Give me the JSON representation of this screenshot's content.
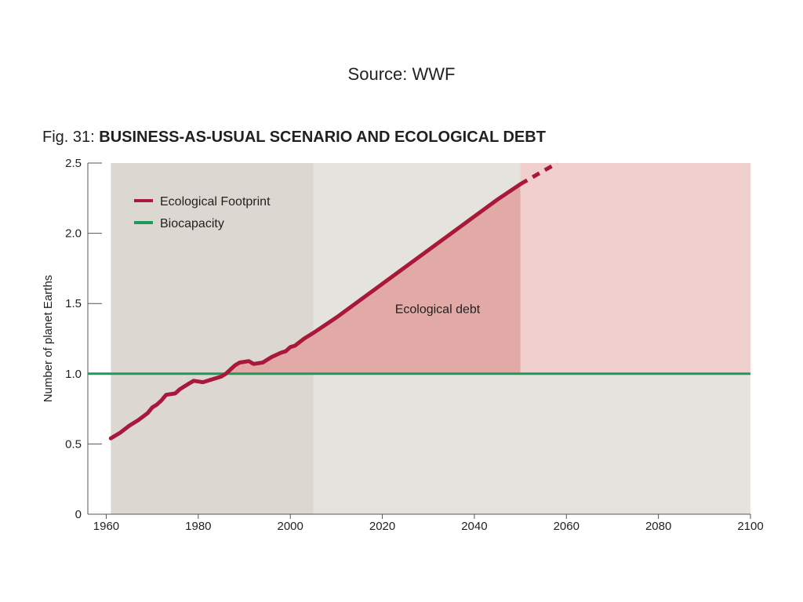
{
  "source": "Source: WWF",
  "figure": {
    "number": "Fig. 31:",
    "title": "BUSINESS-AS-USUAL SCENARIO AND ECOLOGICAL DEBT"
  },
  "colors": {
    "footprint": "#a8183a",
    "biocapacity": "#1d9a5a",
    "historical_bg": "#dcd8d1",
    "projection_bg": "#e5e3de",
    "debt_fill": "#e2aaa6",
    "future_fill": "#f0d0ce"
  },
  "chart_data": {
    "type": "line",
    "ylabel": "Number of planet Earths",
    "xlim": [
      1956,
      2100
    ],
    "ylim": [
      0,
      2.5
    ],
    "x_ticks": [
      1960,
      1980,
      2000,
      2020,
      2040,
      2060,
      2080,
      2100
    ],
    "x_tick_labels": [
      "1960",
      "1980",
      "2000",
      "2020",
      "2040",
      "2060",
      "2080",
      "2100"
    ],
    "y_ticks": [
      0,
      0.5,
      1.0,
      1.5,
      2.0,
      2.5
    ],
    "y_tick_labels": [
      "0",
      "0.5",
      "1.0",
      "1.5",
      "2.0",
      "2.5"
    ],
    "legend": {
      "placement": "top-left",
      "entries": [
        "Ecological Footprint",
        "Biocapacity"
      ]
    },
    "regions": [
      {
        "kind": "historical",
        "x_start": 1961,
        "x_end": 2005
      },
      {
        "kind": "projection",
        "x_start": 2005,
        "x_end": 2100
      }
    ],
    "annotation": {
      "text": "Ecological debt",
      "x": 2032,
      "y": 1.43
    },
    "series": [
      {
        "name": "Ecological Footprint",
        "style": "solid",
        "x": [
          1961,
          1963,
          1965,
          1967,
          1969,
          1970,
          1971,
          1972,
          1973,
          1975,
          1976,
          1978,
          1979,
          1981,
          1983,
          1985,
          1986,
          1987,
          1988,
          1989,
          1991,
          1992,
          1994,
          1996,
          1998,
          1999,
          2000,
          2001,
          2003,
          2005,
          2010,
          2015,
          2020,
          2025,
          2030,
          2035,
          2040,
          2045,
          2050
        ],
        "y": [
          0.54,
          0.58,
          0.63,
          0.67,
          0.72,
          0.76,
          0.78,
          0.81,
          0.85,
          0.86,
          0.89,
          0.93,
          0.95,
          0.94,
          0.96,
          0.98,
          1.0,
          1.03,
          1.06,
          1.08,
          1.09,
          1.07,
          1.08,
          1.12,
          1.15,
          1.16,
          1.19,
          1.2,
          1.25,
          1.29,
          1.4,
          1.52,
          1.64,
          1.76,
          1.88,
          2.0,
          2.12,
          2.24,
          2.35
        ]
      },
      {
        "name": "Ecological Footprint (extension)",
        "style": "dashed",
        "x": [
          2050,
          2058
        ],
        "y": [
          2.35,
          2.5
        ]
      },
      {
        "name": "Biocapacity",
        "style": "solid",
        "x": [
          1956,
          2100
        ],
        "y": [
          1.0,
          1.0
        ]
      }
    ]
  }
}
